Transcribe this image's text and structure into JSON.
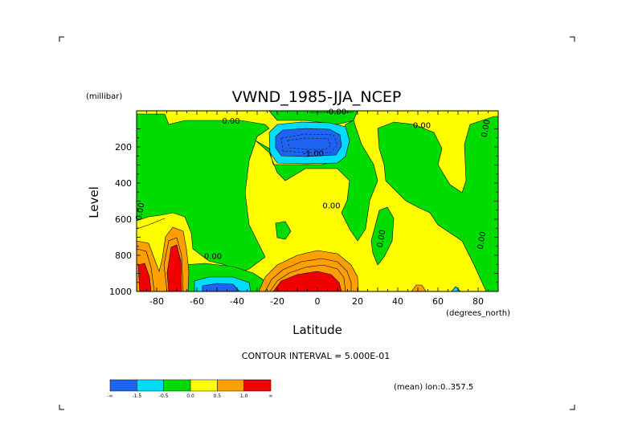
{
  "chart_data": {
    "type": "heatmap",
    "title": "VWND_1985-JJA_NCEP",
    "xlabel": "Latitude",
    "ylabel": "Level",
    "x_unit": "(degrees_north)",
    "y_unit": "(millibar)",
    "xlim": [
      -90,
      90
    ],
    "ylim": [
      1000,
      0
    ],
    "x_ticks": [
      "-80",
      "-60",
      "-40",
      "-20",
      "0",
      "20",
      "40",
      "60",
      "80"
    ],
    "x_tick_values": [
      -80,
      -60,
      -40,
      -20,
      0,
      20,
      40,
      60,
      80
    ],
    "y_ticks": [
      "200",
      "400",
      "600",
      "800",
      "1000"
    ],
    "y_tick_values": [
      200,
      400,
      600,
      800,
      1000
    ],
    "contour_interval_text": "CONTOUR INTERVAL = 5.000E-01",
    "mean_text": "(mean) lon:0..357.5",
    "contour_labels": [
      {
        "text": "0.00",
        "lat": -43,
        "lev": 70
      },
      {
        "text": "0.00",
        "lat": 10,
        "lev": 20
      },
      {
        "text": "-1.00",
        "lat": -2,
        "lev": 250
      },
      {
        "text": "0.00",
        "lat": 52,
        "lev": 95
      },
      {
        "text": "0.00",
        "lat": 85,
        "lev": 100
      },
      {
        "text": "0.00",
        "lat": -87,
        "lev": 560
      },
      {
        "text": "0.00",
        "lat": 7,
        "lev": 540
      },
      {
        "text": "0.00",
        "lat": -52,
        "lev": 820
      },
      {
        "text": "0.00",
        "lat": 33,
        "lev": 710
      },
      {
        "text": "0.00",
        "lat": 83,
        "lev": 720
      }
    ],
    "colorbar": {
      "colors": [
        "#1e64f0",
        "#00dcff",
        "#00dc00",
        "#ffff00",
        "#ffa000",
        "#f00000"
      ],
      "labels": [
        "-∞",
        "-1.5",
        "-0.5",
        "0.0",
        "0.5",
        "1.0",
        "∞"
      ]
    },
    "regions": [
      {
        "value_class": "positive (0 to 0.5)",
        "color": "#ffff00",
        "area": "background"
      },
      {
        "value_class": "negative (-0.5 to 0)",
        "color": "#00dc00",
        "area": "multiple lobes"
      },
      {
        "value_class": "strong negative (< -1.5)",
        "color": "#1e64f0",
        "lat_range": [
          -23,
          13
        ],
        "lev_range": [
          100,
          250
        ]
      },
      {
        "value_class": "strong positive (> 1.0)",
        "color": "#f00000",
        "lat_range": [
          -20,
          5
        ],
        "lev_range": [
          880,
          1000
        ]
      },
      {
        "value_class": "strong positive (> 1.0)",
        "color": "#f00000",
        "lat_range": [
          -88,
          -72
        ],
        "lev_range": [
          760,
          1000
        ]
      }
    ]
  }
}
